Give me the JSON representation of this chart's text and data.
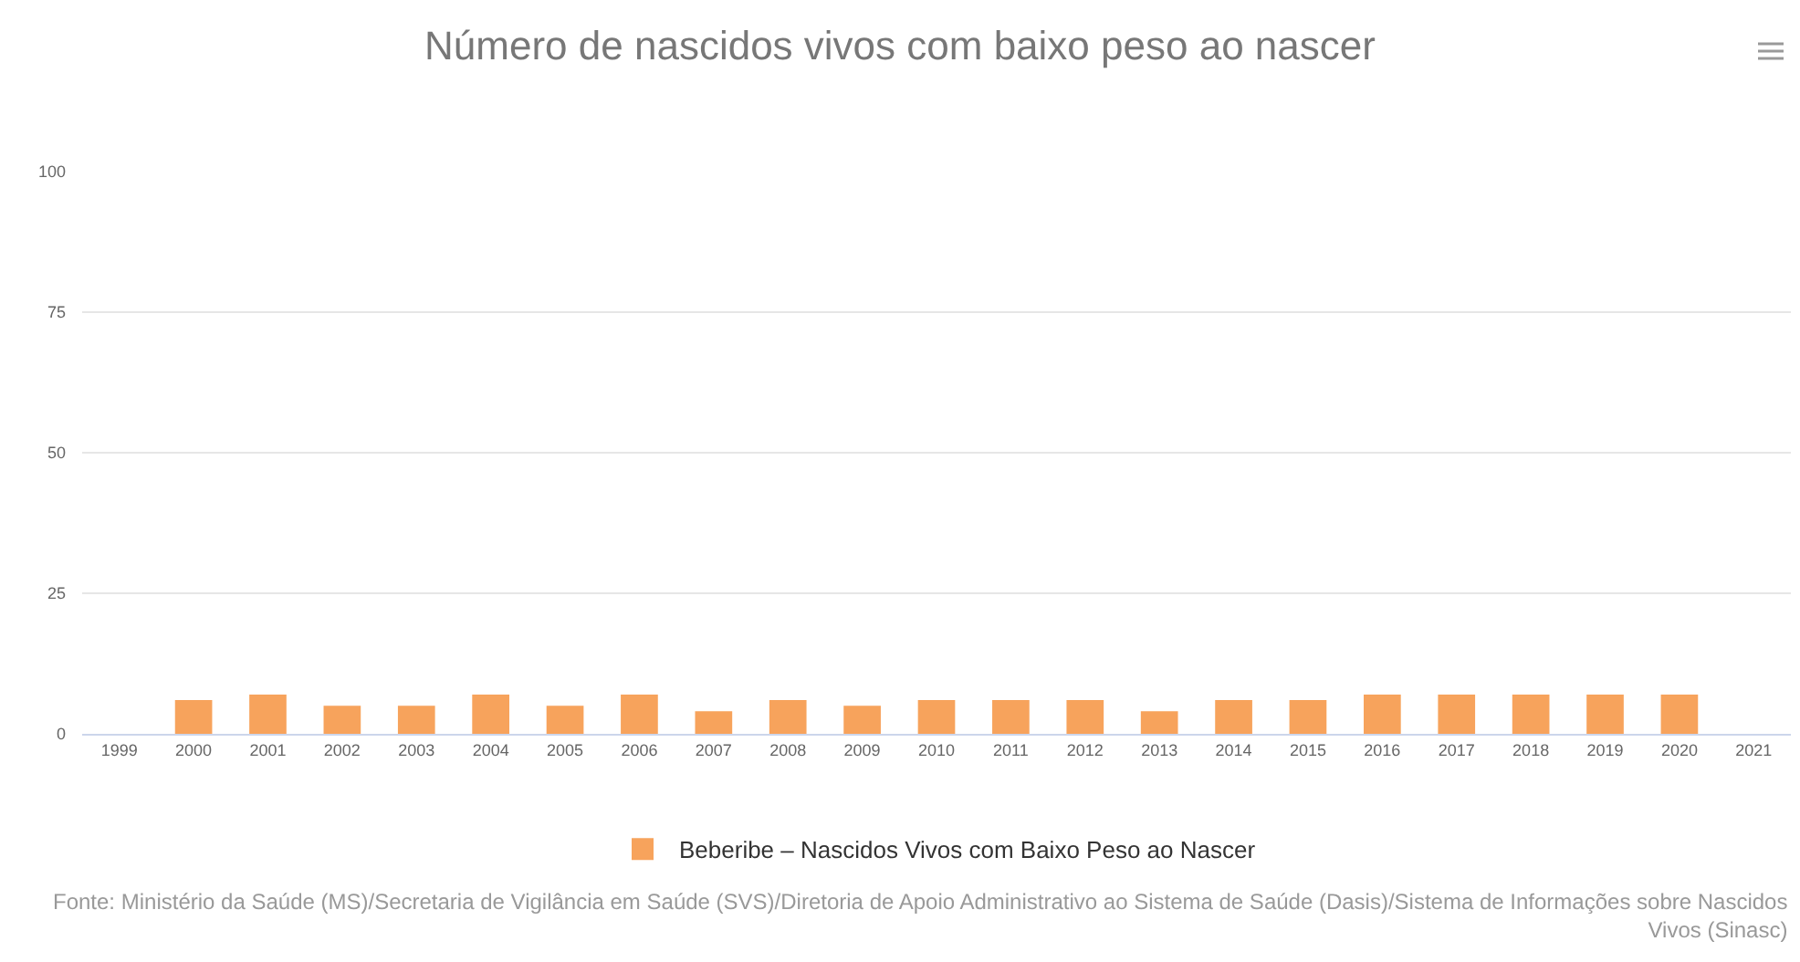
{
  "chart_data": {
    "type": "bar",
    "title": "Número de nascidos vivos com baixo peso ao nascer",
    "categories": [
      "1999",
      "2000",
      "2001",
      "2002",
      "2003",
      "2004",
      "2005",
      "2006",
      "2007",
      "2008",
      "2009",
      "2010",
      "2011",
      "2012",
      "2013",
      "2014",
      "2015",
      "2016",
      "2017",
      "2018",
      "2019",
      "2020",
      "2021"
    ],
    "series": [
      {
        "name": "Beberibe – Nascidos Vivos com Baixo Peso ao Nascer",
        "color": "#f7a35c",
        "values": [
          null,
          6,
          7,
          5,
          5,
          7,
          5,
          7,
          4,
          6,
          5,
          6,
          6,
          6,
          4,
          6,
          6,
          7,
          7,
          7,
          7,
          7,
          null
        ]
      }
    ],
    "ylim": [
      0,
      100
    ],
    "yticks": [
      0,
      25,
      50,
      75,
      100
    ],
    "grid": "y",
    "legend": "bottom",
    "annotations": [
      "Fonte: Ministério da Saúde (MS)/Secretaria de Vigilância em Saúde (SVS)/Diretoria de Apoio Administrativo ao Sistema de Saúde (Dasis)/Sistema de Informações sobre Nascidos Vivos (Sinasc)"
    ]
  }
}
